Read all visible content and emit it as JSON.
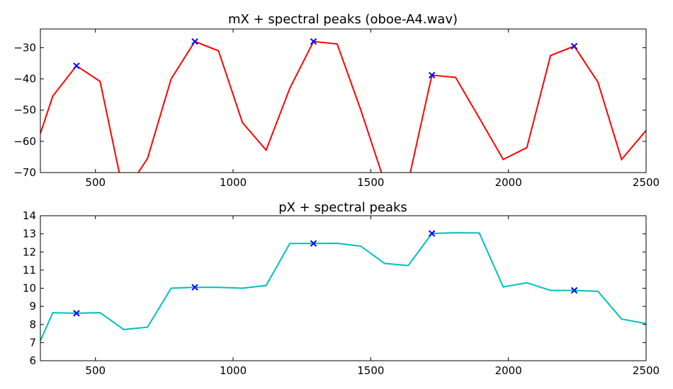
{
  "chart_data": [
    {
      "type": "line",
      "title": "mX + spectral peaks (oboe-A4.wav)",
      "xlabel": "",
      "ylabel": "",
      "xlim": [
        300,
        2500
      ],
      "ylim": [
        -70,
        -24
      ],
      "xticks": [
        500,
        1000,
        1500,
        2000,
        2500
      ],
      "yticks": [
        -70,
        -60,
        -50,
        -40,
        -30
      ],
      "grid": false,
      "series": [
        {
          "color": "#ff0000",
          "x": [
            300,
            345,
            431,
            517,
            603,
            689,
            775,
            861,
            947,
            1034,
            1120,
            1206,
            1292,
            1378,
            1464,
            1550,
            1636,
            1722,
            1808,
            1894,
            1981,
            2067,
            2153,
            2239,
            2325,
            2411,
            2500
          ],
          "y": [
            -57.5,
            -45.5,
            -35.8,
            -40.8,
            -77,
            -65.5,
            -40,
            -28,
            -31,
            -54,
            -62.8,
            -43,
            -28,
            -28.8,
            -50,
            -73,
            -73,
            -38.8,
            -39.5,
            -52.5,
            -65.8,
            -62,
            -32.5,
            -29.5,
            -41,
            -65.8,
            -56.5
          ]
        }
      ],
      "peaks": {
        "color": "#0000ff",
        "marker": "x",
        "x": [
          431,
          861,
          1292,
          1722,
          2239
        ],
        "y": [
          -35.8,
          -28,
          -28,
          -38.8,
          -29.5
        ]
      }
    },
    {
      "type": "line",
      "title": "pX + spectral peaks",
      "xlabel": "",
      "ylabel": "",
      "xlim": [
        300,
        2500
      ],
      "ylim": [
        6,
        14
      ],
      "xticks": [
        500,
        1000,
        1500,
        2000,
        2500
      ],
      "yticks": [
        6,
        7,
        8,
        9,
        10,
        11,
        12,
        13,
        14
      ],
      "grid": false,
      "series": [
        {
          "color": "#00bfbf",
          "x": [
            300,
            345,
            431,
            517,
            603,
            689,
            775,
            861,
            947,
            1034,
            1120,
            1206,
            1292,
            1378,
            1464,
            1550,
            1636,
            1722,
            1808,
            1894,
            1981,
            2067,
            2153,
            2239,
            2325,
            2411,
            2500
          ],
          "y": [
            7.1,
            8.65,
            8.62,
            8.65,
            7.72,
            7.85,
            10.0,
            10.05,
            10.05,
            10.0,
            10.15,
            12.47,
            12.47,
            12.48,
            12.32,
            11.37,
            11.25,
            13.02,
            13.06,
            13.05,
            10.07,
            10.3,
            9.88,
            9.88,
            9.83,
            8.3,
            8.05
          ]
        }
      ],
      "peaks": {
        "color": "#0000ff",
        "marker": "x",
        "x": [
          431,
          861,
          1292,
          1722,
          2239
        ],
        "y": [
          8.62,
          10.05,
          12.47,
          13.02,
          9.88
        ]
      }
    }
  ]
}
